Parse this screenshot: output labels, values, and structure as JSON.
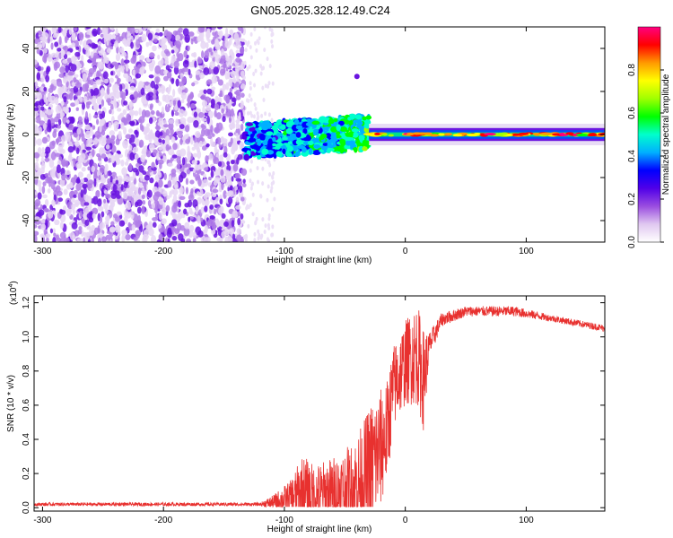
{
  "title": "GN05.2025.328.12.49.C24",
  "chart_data": [
    {
      "type": "heatmap",
      "name": "spectrogram",
      "xlabel": "Height of straight line (km)",
      "ylabel": "Frequency (Hz)",
      "xlim": [
        -307,
        165
      ],
      "ylim": [
        -50,
        50
      ],
      "xticks": [
        -300,
        -200,
        -100,
        0,
        100
      ],
      "xtick_labels": [
        "-300",
        "-200",
        "-100",
        "0",
        "100"
      ],
      "yticks": [
        -40,
        -20,
        0,
        20,
        40
      ],
      "ytick_labels": [
        "-40",
        "-20",
        "0",
        "20",
        "40"
      ],
      "description_regions": [
        {
          "x_range": [
            -307,
            -133
          ],
          "y_range": [
            -50,
            50
          ],
          "amplitude": "low",
          "pattern": "noise"
        },
        {
          "x_range": [
            -133,
            -30
          ],
          "y_center": -3,
          "y_halfwidth": 8,
          "amplitude": "medium",
          "pattern": "blobs"
        },
        {
          "x_range": [
            -30,
            165
          ],
          "y_center": 0,
          "y_halfwidth": 2,
          "amplitude": "high",
          "pattern": "band"
        }
      ],
      "colorbar": {
        "label": "Normalized spectral amplitude",
        "range": [
          0,
          1
        ],
        "ticks": [
          0.0,
          0.2,
          0.4,
          0.6,
          0.8
        ],
        "tick_labels": [
          "0.0",
          "0.2",
          "0.4",
          "0.6",
          "0.8"
        ],
        "colors": [
          "#ffffff",
          "#e0c8f0",
          "#9a4de0",
          "#5000e8",
          "#0000ff",
          "#00b0ff",
          "#00ffcc",
          "#00ff00",
          "#a0ff00",
          "#ffff00",
          "#ff9900",
          "#ff0000",
          "#ff0080"
        ]
      }
    },
    {
      "type": "line",
      "name": "snr",
      "xlabel": "Height of straight line (km)",
      "ylabel": "SNR (10 * v/v)",
      "y_multiplier": "(x10",
      "y_multiplier_exp": "4",
      "y_multiplier_close": ")",
      "xlim": [
        -307,
        165
      ],
      "ylim": [
        -0.02,
        1.24
      ],
      "xticks": [
        -300,
        -200,
        -100,
        0,
        100
      ],
      "xtick_labels": [
        "-300",
        "-200",
        "-100",
        "0",
        "100"
      ],
      "yticks": [
        0.0,
        0.2,
        0.4,
        0.6,
        0.8,
        1.0,
        1.2
      ],
      "ytick_labels": [
        "0.0",
        "0.2",
        "0.4",
        "0.6",
        "0.8",
        "1.0",
        "1.2"
      ],
      "color": "#e8312f",
      "envelope": [
        {
          "x": -307,
          "base": 0.02,
          "amp": 0.01
        },
        {
          "x": -120,
          "base": 0.02,
          "amp": 0.01
        },
        {
          "x": -110,
          "base": 0.03,
          "amp": 0.04
        },
        {
          "x": -95,
          "base": 0.06,
          "amp": 0.1
        },
        {
          "x": -85,
          "base": 0.09,
          "amp": 0.22
        },
        {
          "x": -75,
          "base": 0.07,
          "amp": 0.18
        },
        {
          "x": -60,
          "base": 0.08,
          "amp": 0.22
        },
        {
          "x": -45,
          "base": 0.11,
          "amp": 0.26
        },
        {
          "x": -35,
          "base": 0.15,
          "amp": 0.35
        },
        {
          "x": -28,
          "base": 0.25,
          "amp": 0.38
        },
        {
          "x": -20,
          "base": 0.35,
          "amp": 0.35
        },
        {
          "x": -15,
          "base": 0.45,
          "amp": 0.3
        },
        {
          "x": -10,
          "base": 0.7,
          "amp": 0.25
        },
        {
          "x": 0,
          "base": 0.85,
          "amp": 0.25
        },
        {
          "x": 10,
          "base": 0.9,
          "amp": 0.3
        },
        {
          "x": 15,
          "base": 0.75,
          "amp": 0.3
        },
        {
          "x": 20,
          "base": 0.95,
          "amp": 0.08
        },
        {
          "x": 30,
          "base": 1.1,
          "amp": 0.04
        },
        {
          "x": 50,
          "base": 1.15,
          "amp": 0.03
        },
        {
          "x": 90,
          "base": 1.15,
          "amp": 0.03
        },
        {
          "x": 120,
          "base": 1.11,
          "amp": 0.02
        },
        {
          "x": 165,
          "base": 1.05,
          "amp": 0.02
        }
      ]
    }
  ]
}
